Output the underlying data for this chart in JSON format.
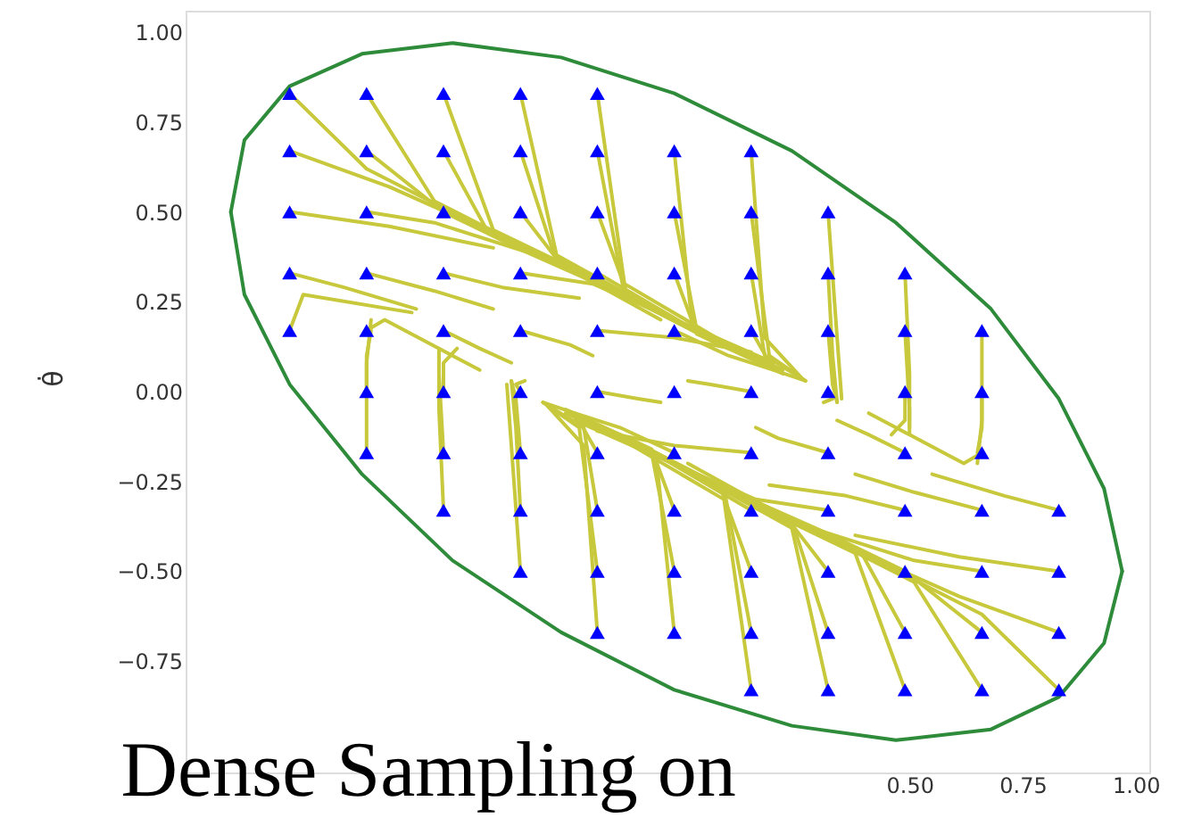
{
  "chart_data": {
    "type": "scatter",
    "ylabel": "θ̇",
    "xlim": [
      -1.1,
      1.03
    ],
    "ylim": [
      -1.06,
      1.06
    ],
    "xticks": [
      {
        "value": 0.5,
        "label": "0.50"
      },
      {
        "value": 0.75,
        "label": "0.75"
      },
      {
        "value": 1.0,
        "label": "1.00"
      }
    ],
    "yticks": [
      {
        "value": -0.75,
        "label": "−0.75"
      },
      {
        "value": -0.5,
        "label": "−0.50"
      },
      {
        "value": -0.25,
        "label": "−0.25"
      },
      {
        "value": 0,
        "label": "0.00"
      },
      {
        "value": 0.25,
        "label": "0.25"
      },
      {
        "value": 0.5,
        "label": "0.50"
      },
      {
        "value": 0.75,
        "label": "0.75"
      },
      {
        "value": 1.0,
        "label": "1.00"
      }
    ],
    "grid": false,
    "annotations": [
      "Dense Sampling on"
    ],
    "series": [
      {
        "type": "line",
        "color": "#c8c83c",
        "x": [
          -0.87,
          -0.7,
          -0.45
        ],
        "values": [
          0.83,
          0.62,
          0.46
        ]
      },
      {
        "type": "line",
        "color": "#c8c83c",
        "x": [
          -0.7,
          -0.55,
          -0.3
        ],
        "values": [
          0.83,
          0.53,
          0.37
        ]
      },
      {
        "type": "line",
        "color": "#c8c83c",
        "x": [
          -0.53,
          -0.42,
          -0.19
        ],
        "values": [
          0.83,
          0.45,
          0.31
        ]
      },
      {
        "type": "line",
        "color": "#c8c83c",
        "x": [
          -0.36,
          -0.28,
          -0.05
        ],
        "values": [
          0.83,
          0.38,
          0.22
        ]
      },
      {
        "type": "line",
        "color": "#c8c83c",
        "x": [
          -0.19,
          -0.13,
          0.1
        ],
        "values": [
          0.83,
          0.3,
          0.13
        ]
      },
      {
        "type": "line",
        "color": "#c8c83c",
        "x": [
          -0.87,
          -0.65,
          -0.4
        ],
        "values": [
          0.67,
          0.57,
          0.43
        ]
      },
      {
        "type": "line",
        "color": "#c8c83c",
        "x": [
          -0.7,
          -0.55,
          -0.3
        ],
        "values": [
          0.67,
          0.52,
          0.37
        ]
      },
      {
        "type": "line",
        "color": "#c8c83c",
        "x": [
          -0.53,
          -0.43,
          -0.2
        ],
        "values": [
          0.67,
          0.44,
          0.31
        ]
      },
      {
        "type": "line",
        "color": "#c8c83c",
        "x": [
          -0.36,
          -0.28,
          -0.05
        ],
        "values": [
          0.67,
          0.36,
          0.2
        ]
      },
      {
        "type": "line",
        "color": "#c8c83c",
        "x": [
          -0.19,
          -0.13,
          0.08
        ],
        "values": [
          0.67,
          0.27,
          0.13
        ]
      },
      {
        "type": "line",
        "color": "#c8c83c",
        "x": [
          -0.02,
          0.02,
          0.2
        ],
        "values": [
          0.67,
          0.18,
          0.08
        ]
      },
      {
        "type": "line",
        "color": "#c8c83c",
        "x": [
          0.15,
          0.18,
          0.26
        ],
        "values": [
          0.67,
          0.15,
          0.04
        ]
      },
      {
        "type": "line",
        "color": "#c8c83c",
        "x": [
          -0.87,
          -0.65,
          -0.42
        ],
        "values": [
          0.5,
          0.46,
          0.4
        ]
      },
      {
        "type": "line",
        "color": "#c8c83c",
        "x": [
          -0.7,
          -0.55,
          -0.3
        ],
        "values": [
          0.5,
          0.47,
          0.37
        ]
      },
      {
        "type": "line",
        "color": "#c8c83c",
        "x": [
          -0.53,
          -0.35,
          -0.1
        ],
        "values": [
          0.5,
          0.39,
          0.25
        ]
      },
      {
        "type": "line",
        "color": "#c8c83c",
        "x": [
          -0.36,
          -0.28,
          -0.02
        ],
        "values": [
          0.5,
          0.37,
          0.2
        ]
      },
      {
        "type": "line",
        "color": "#c8c83c",
        "x": [
          -0.19,
          -0.12,
          0.1
        ],
        "values": [
          0.5,
          0.26,
          0.12
        ]
      },
      {
        "type": "line",
        "color": "#c8c83c",
        "x": [
          -0.02,
          0.03,
          0.22
        ],
        "values": [
          0.5,
          0.17,
          0.06
        ]
      },
      {
        "type": "line",
        "color": "#c8c83c",
        "x": [
          0.15,
          0.19,
          0.27
        ],
        "values": [
          0.5,
          0.1,
          0.03
        ]
      },
      {
        "type": "line",
        "color": "#c8c83c",
        "x": [
          0.32,
          0.34,
          0.35
        ],
        "values": [
          0.5,
          0.15,
          -0.02
        ]
      },
      {
        "type": "line",
        "color": "#c8c83c",
        "x": [
          -0.87,
          -0.75,
          -0.59
        ],
        "values": [
          0.33,
          0.29,
          0.23
        ]
      },
      {
        "type": "line",
        "color": "#c8c83c",
        "x": [
          -0.7,
          -0.55,
          -0.42
        ],
        "values": [
          0.33,
          0.28,
          0.23
        ]
      },
      {
        "type": "line",
        "color": "#c8c83c",
        "x": [
          -0.53,
          -0.4,
          -0.23
        ],
        "values": [
          0.33,
          0.29,
          0.26
        ]
      },
      {
        "type": "line",
        "color": "#c8c83c",
        "x": [
          -0.36,
          -0.2,
          0.02
        ],
        "values": [
          0.33,
          0.3,
          0.18
        ]
      },
      {
        "type": "line",
        "color": "#c8c83c",
        "x": [
          -0.19,
          0.0,
          0.2
        ],
        "values": [
          0.33,
          0.19,
          0.07
        ]
      },
      {
        "type": "line",
        "color": "#c8c83c",
        "x": [
          -0.02,
          0.03,
          0.22
        ],
        "values": [
          0.33,
          0.16,
          0.05
        ]
      },
      {
        "type": "line",
        "color": "#c8c83c",
        "x": [
          0.15,
          0.18,
          0.27
        ],
        "values": [
          0.33,
          0.1,
          0.03
        ]
      },
      {
        "type": "line",
        "color": "#c8c83c",
        "x": [
          0.32,
          0.33,
          0.34
        ],
        "values": [
          0.33,
          0.1,
          -0.03
        ]
      },
      {
        "type": "line",
        "color": "#c8c83c",
        "x": [
          0.49,
          0.5,
          0.5
        ],
        "values": [
          0.33,
          0.05,
          -0.1
        ]
      },
      {
        "type": "line",
        "color": "#c8c83c",
        "x": [
          -0.87,
          -0.84,
          -0.6
        ],
        "values": [
          0.17,
          0.27,
          0.22
        ]
      },
      {
        "type": "line",
        "color": "#c8c83c",
        "x": [
          -0.7,
          -0.66,
          -0.45
        ],
        "values": [
          0.17,
          0.2,
          0.06
        ]
      },
      {
        "type": "line",
        "color": "#c8c83c",
        "x": [
          -0.53,
          -0.45,
          -0.38
        ],
        "values": [
          0.17,
          0.12,
          0.08
        ]
      },
      {
        "type": "line",
        "color": "#c8c83c",
        "x": [
          -0.36,
          -0.25,
          -0.2
        ],
        "values": [
          0.17,
          0.13,
          0.1
        ]
      },
      {
        "type": "line",
        "color": "#c8c83c",
        "x": [
          -0.19,
          -0.02,
          0.15
        ],
        "values": [
          0.17,
          0.15,
          0.11
        ]
      },
      {
        "type": "line",
        "color": "#c8c83c",
        "x": [
          -0.02,
          0.1,
          0.2
        ],
        "values": [
          0.17,
          0.1,
          0.06
        ]
      },
      {
        "type": "line",
        "color": "#c8c83c",
        "x": [
          0.15,
          0.2,
          0.27
        ],
        "values": [
          0.17,
          0.06,
          0.03
        ]
      },
      {
        "type": "line",
        "color": "#c8c83c",
        "x": [
          0.32,
          0.33,
          0.34
        ],
        "values": [
          0.17,
          0.02,
          -0.03
        ]
      },
      {
        "type": "line",
        "color": "#c8c83c",
        "x": [
          0.49,
          0.5,
          0.5
        ],
        "values": [
          0.17,
          -0.05,
          -0.12
        ]
      },
      {
        "type": "line",
        "color": "#c8c83c",
        "x": [
          0.66,
          0.66,
          0.65
        ],
        "values": [
          0.17,
          -0.08,
          -0.2
        ]
      },
      {
        "type": "line",
        "color": "#c8c83c",
        "x": [
          -0.7,
          -0.7,
          -0.69
        ],
        "values": [
          0,
          0.1,
          0.17
        ]
      },
      {
        "type": "line",
        "color": "#c8c83c",
        "x": [
          -0.53,
          -0.53,
          -0.5
        ],
        "values": [
          0,
          0.08,
          0.12
        ]
      },
      {
        "type": "line",
        "color": "#c8c83c",
        "x": [
          -0.36,
          -0.37,
          -0.35
        ],
        "values": [
          0,
          0.02,
          0.03
        ]
      },
      {
        "type": "line",
        "color": "#c8c83c",
        "x": [
          -0.19,
          -0.1,
          -0.05
        ],
        "values": [
          0,
          -0.02,
          -0.03
        ]
      },
      {
        "type": "line",
        "color": "#c8c83c",
        "x": [
          0.83,
          0.66,
          0.41
        ],
        "values": [
          -0.83,
          -0.62,
          -0.46
        ]
      },
      {
        "type": "line",
        "color": "#c8c83c",
        "x": [
          0.66,
          0.51,
          0.26
        ],
        "values": [
          -0.83,
          -0.53,
          -0.37
        ]
      },
      {
        "type": "line",
        "color": "#c8c83c",
        "x": [
          0.49,
          0.38,
          0.15
        ],
        "values": [
          -0.83,
          -0.45,
          -0.31
        ]
      },
      {
        "type": "line",
        "color": "#c8c83c",
        "x": [
          0.32,
          0.24,
          0.01
        ],
        "values": [
          -0.83,
          -0.38,
          -0.22
        ]
      },
      {
        "type": "line",
        "color": "#c8c83c",
        "x": [
          0.15,
          0.09,
          -0.14
        ],
        "values": [
          -0.83,
          -0.3,
          -0.13
        ]
      },
      {
        "type": "line",
        "color": "#c8c83c",
        "x": [
          0.83,
          0.61,
          0.36
        ],
        "values": [
          -0.67,
          -0.57,
          -0.43
        ]
      },
      {
        "type": "line",
        "color": "#c8c83c",
        "x": [
          0.66,
          0.51,
          0.26
        ],
        "values": [
          -0.67,
          -0.52,
          -0.37
        ]
      },
      {
        "type": "line",
        "color": "#c8c83c",
        "x": [
          0.49,
          0.39,
          0.16
        ],
        "values": [
          -0.67,
          -0.44,
          -0.31
        ]
      },
      {
        "type": "line",
        "color": "#c8c83c",
        "x": [
          0.32,
          0.24,
          0.01
        ],
        "values": [
          -0.67,
          -0.36,
          -0.2
        ]
      },
      {
        "type": "line",
        "color": "#c8c83c",
        "x": [
          0.15,
          0.09,
          -0.12
        ],
        "values": [
          -0.67,
          -0.27,
          -0.13
        ]
      },
      {
        "type": "line",
        "color": "#c8c83c",
        "x": [
          -0.02,
          -0.06,
          -0.24
        ],
        "values": [
          -0.67,
          -0.18,
          -0.08
        ]
      },
      {
        "type": "line",
        "color": "#c8c83c",
        "x": [
          -0.19,
          -0.22,
          -0.3
        ],
        "values": [
          -0.67,
          -0.15,
          -0.04
        ]
      },
      {
        "type": "line",
        "color": "#c8c83c",
        "x": [
          0.83,
          0.61,
          0.38
        ],
        "values": [
          -0.5,
          -0.46,
          -0.4
        ]
      },
      {
        "type": "line",
        "color": "#c8c83c",
        "x": [
          0.66,
          0.51,
          0.26
        ],
        "values": [
          -0.5,
          -0.47,
          -0.37
        ]
      },
      {
        "type": "line",
        "color": "#c8c83c",
        "x": [
          0.49,
          0.31,
          0.06
        ],
        "values": [
          -0.5,
          -0.39,
          -0.25
        ]
      },
      {
        "type": "line",
        "color": "#c8c83c",
        "x": [
          0.32,
          0.24,
          -0.02
        ],
        "values": [
          -0.5,
          -0.37,
          -0.2
        ]
      },
      {
        "type": "line",
        "color": "#c8c83c",
        "x": [
          0.15,
          0.08,
          -0.14
        ],
        "values": [
          -0.5,
          -0.26,
          -0.12
        ]
      },
      {
        "type": "line",
        "color": "#c8c83c",
        "x": [
          -0.02,
          -0.07,
          -0.26
        ],
        "values": [
          -0.5,
          -0.17,
          -0.06
        ]
      },
      {
        "type": "line",
        "color": "#c8c83c",
        "x": [
          -0.19,
          -0.23,
          -0.31
        ],
        "values": [
          -0.5,
          -0.1,
          -0.03
        ]
      },
      {
        "type": "line",
        "color": "#c8c83c",
        "x": [
          -0.36,
          -0.38,
          -0.39
        ],
        "values": [
          -0.5,
          -0.15,
          0.02
        ]
      },
      {
        "type": "line",
        "color": "#c8c83c",
        "x": [
          0.83,
          0.71,
          0.55
        ],
        "values": [
          -0.33,
          -0.29,
          -0.23
        ]
      },
      {
        "type": "line",
        "color": "#c8c83c",
        "x": [
          0.66,
          0.51,
          0.38
        ],
        "values": [
          -0.33,
          -0.28,
          -0.23
        ]
      },
      {
        "type": "line",
        "color": "#c8c83c",
        "x": [
          0.49,
          0.36,
          0.19
        ],
        "values": [
          -0.33,
          -0.29,
          -0.26
        ]
      },
      {
        "type": "line",
        "color": "#c8c83c",
        "x": [
          0.32,
          0.16,
          -0.06
        ],
        "values": [
          -0.33,
          -0.3,
          -0.18
        ]
      },
      {
        "type": "line",
        "color": "#c8c83c",
        "x": [
          0.15,
          -0.04,
          -0.24
        ],
        "values": [
          -0.33,
          -0.19,
          -0.07
        ]
      },
      {
        "type": "line",
        "color": "#c8c83c",
        "x": [
          -0.02,
          -0.07,
          -0.26
        ],
        "values": [
          -0.33,
          -0.16,
          -0.05
        ]
      },
      {
        "type": "line",
        "color": "#c8c83c",
        "x": [
          -0.19,
          -0.22,
          -0.31
        ],
        "values": [
          -0.33,
          -0.1,
          -0.03
        ]
      },
      {
        "type": "line",
        "color": "#c8c83c",
        "x": [
          -0.36,
          -0.37,
          -0.38
        ],
        "values": [
          -0.33,
          -0.1,
          0.03
        ]
      },
      {
        "type": "line",
        "color": "#c8c83c",
        "x": [
          -0.53,
          -0.54,
          -0.54
        ],
        "values": [
          -0.33,
          -0.05,
          0.1
        ]
      },
      {
        "type": "line",
        "color": "#c8c83c",
        "x": [
          0.66,
          0.62,
          0.41
        ],
        "values": [
          -0.17,
          -0.2,
          -0.06
        ]
      },
      {
        "type": "line",
        "color": "#c8c83c",
        "x": [
          0.49,
          0.41,
          0.34
        ],
        "values": [
          -0.17,
          -0.12,
          -0.08
        ]
      },
      {
        "type": "line",
        "color": "#c8c83c",
        "x": [
          0.32,
          0.21,
          0.16
        ],
        "values": [
          -0.17,
          -0.13,
          -0.1
        ]
      },
      {
        "type": "line",
        "color": "#c8c83c",
        "x": [
          0.15,
          -0.02,
          -0.19
        ],
        "values": [
          -0.17,
          -0.15,
          -0.11
        ]
      },
      {
        "type": "line",
        "color": "#c8c83c",
        "x": [
          -0.02,
          -0.14,
          -0.24
        ],
        "values": [
          -0.17,
          -0.1,
          -0.06
        ]
      },
      {
        "type": "line",
        "color": "#c8c83c",
        "x": [
          -0.19,
          -0.24,
          -0.31
        ],
        "values": [
          -0.17,
          -0.06,
          -0.03
        ]
      },
      {
        "type": "line",
        "color": "#c8c83c",
        "x": [
          -0.36,
          -0.37,
          -0.38
        ],
        "values": [
          -0.17,
          -0.02,
          0.03
        ]
      },
      {
        "type": "line",
        "color": "#c8c83c",
        "x": [
          -0.53,
          -0.54,
          -0.54
        ],
        "values": [
          -0.17,
          0.05,
          0.12
        ]
      },
      {
        "type": "line",
        "color": "#c8c83c",
        "x": [
          -0.7,
          -0.7,
          -0.69
        ],
        "values": [
          -0.17,
          0.08,
          0.2
        ]
      },
      {
        "type": "line",
        "color": "#c8c83c",
        "x": [
          0.66,
          0.66,
          0.65
        ],
        "values": [
          0,
          -0.1,
          -0.17
        ]
      },
      {
        "type": "line",
        "color": "#c8c83c",
        "x": [
          0.49,
          0.49,
          0.46
        ],
        "values": [
          0,
          -0.08,
          -0.12
        ]
      },
      {
        "type": "line",
        "color": "#c8c83c",
        "x": [
          0.32,
          0.33,
          0.31
        ],
        "values": [
          0,
          -0.02,
          -0.03
        ]
      },
      {
        "type": "line",
        "color": "#c8c83c",
        "x": [
          0.15,
          0.06,
          0.01
        ],
        "values": [
          0,
          0.02,
          0.03
        ]
      },
      {
        "type": "line",
        "color": "#2e8b3a",
        "x": [
          -1.0,
          -0.97,
          -0.87,
          -0.71,
          -0.51,
          -0.27,
          -0.02,
          0.24,
          0.47,
          0.68,
          0.83,
          0.93,
          0.97
        ],
        "values": [
          0.5,
          0.7,
          0.85,
          0.94,
          0.97,
          0.93,
          0.83,
          0.67,
          0.47,
          0.23,
          -0.02,
          -0.27,
          -0.5
        ]
      },
      {
        "type": "line",
        "color": "#2e8b3a",
        "x": [
          -1.0,
          -0.97,
          -0.87,
          -0.71,
          -0.51,
          -0.27,
          -0.02,
          0.24,
          0.47,
          0.68,
          0.83,
          0.93,
          0.97
        ],
        "values": [
          0.5,
          0.27,
          0.02,
          -0.23,
          -0.47,
          -0.67,
          -0.83,
          -0.93,
          -0.97,
          -0.94,
          -0.85,
          -0.7,
          -0.5
        ]
      },
      {
        "type": "scatter",
        "color": "#0000ff",
        "marker": "triangle",
        "x": [
          -0.87,
          -0.7,
          -0.53,
          -0.36,
          -0.19,
          -0.87,
          -0.7,
          -0.53,
          -0.36,
          -0.19,
          -0.02,
          0.15,
          -0.87,
          -0.7,
          -0.53,
          -0.36,
          -0.19,
          -0.02,
          0.15,
          0.32,
          -0.87,
          -0.7,
          -0.53,
          -0.36,
          -0.19,
          -0.02,
          0.15,
          0.32,
          0.49,
          -0.87,
          -0.7,
          -0.53,
          -0.36,
          -0.19,
          -0.02,
          0.15,
          0.32,
          0.49,
          0.66,
          -0.7,
          -0.53,
          -0.36,
          -0.19,
          -0.02,
          0.15,
          0.32,
          0.49,
          0.66,
          -0.7,
          -0.53,
          -0.36,
          -0.19,
          -0.02,
          0.15,
          0.32,
          0.49,
          0.66,
          -0.53,
          -0.36,
          -0.19,
          -0.02,
          0.15,
          0.32,
          0.49,
          0.66,
          0.83,
          -0.36,
          -0.19,
          -0.02,
          0.15,
          0.32,
          0.49,
          0.66,
          0.83,
          -0.19,
          -0.02,
          0.15,
          0.32,
          0.49,
          0.66,
          0.83,
          0.15,
          0.32,
          0.49,
          0.66,
          0.83
        ],
        "values": [
          0.83,
          0.83,
          0.83,
          0.83,
          0.83,
          0.67,
          0.67,
          0.67,
          0.67,
          0.67,
          0.67,
          0.67,
          0.5,
          0.5,
          0.5,
          0.5,
          0.5,
          0.5,
          0.5,
          0.5,
          0.33,
          0.33,
          0.33,
          0.33,
          0.33,
          0.33,
          0.33,
          0.33,
          0.33,
          0.17,
          0.17,
          0.17,
          0.17,
          0.17,
          0.17,
          0.17,
          0.17,
          0.17,
          0.17,
          0,
          0,
          0,
          0,
          0,
          0,
          0,
          0,
          0,
          -0.17,
          -0.17,
          -0.17,
          -0.17,
          -0.17,
          -0.17,
          -0.17,
          -0.17,
          -0.17,
          -0.33,
          -0.33,
          -0.33,
          -0.33,
          -0.33,
          -0.33,
          -0.33,
          -0.33,
          -0.33,
          -0.5,
          -0.5,
          -0.5,
          -0.5,
          -0.5,
          -0.5,
          -0.5,
          -0.5,
          -0.67,
          -0.67,
          -0.67,
          -0.67,
          -0.67,
          -0.67,
          -0.67,
          -0.83,
          -0.83,
          -0.83,
          -0.83,
          -0.83
        ]
      }
    ]
  }
}
